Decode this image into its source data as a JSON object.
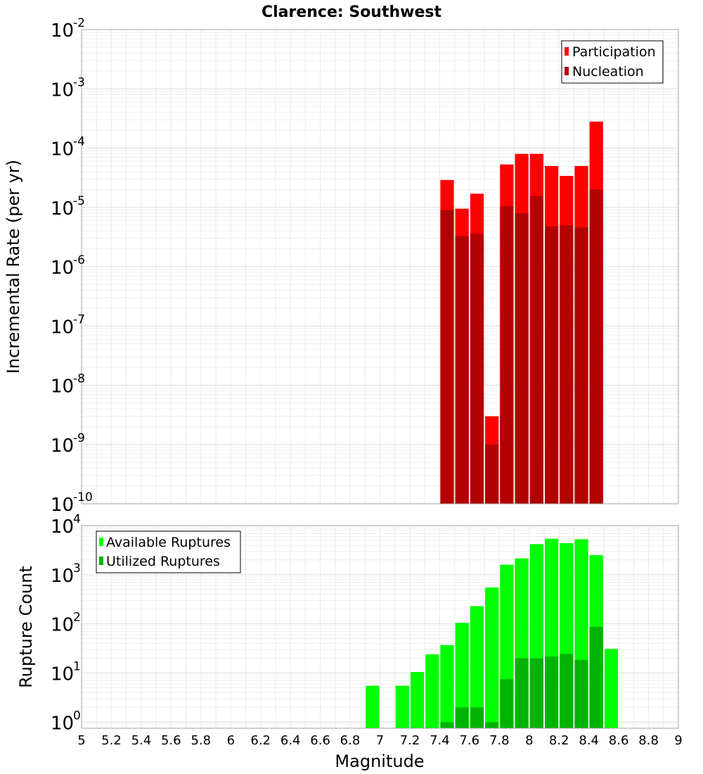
{
  "chart_data": [
    {
      "type": "bar",
      "title": "Clarence: Southwest",
      "xlabel": "Magnitude",
      "ylabel": "Incremental Rate (per yr)",
      "yscale": "log",
      "ylim": [
        1e-10,
        0.01
      ],
      "xlim": [
        5,
        9
      ],
      "grid": true,
      "legend_position": "top-right",
      "y_ticks": [
        {
          "base": "10",
          "exp": "-10",
          "value": 1e-10
        },
        {
          "base": "10",
          "exp": "-9",
          "value": 1e-09
        },
        {
          "base": "10",
          "exp": "-8",
          "value": 1e-08
        },
        {
          "base": "10",
          "exp": "-7",
          "value": 1e-07
        },
        {
          "base": "10",
          "exp": "-6",
          "value": 1e-06
        },
        {
          "base": "10",
          "exp": "-5",
          "value": 1e-05
        },
        {
          "base": "10",
          "exp": "-4",
          "value": 0.0001
        },
        {
          "base": "10",
          "exp": "-3",
          "value": 0.001
        },
        {
          "base": "10",
          "exp": "-2",
          "value": 0.01
        }
      ],
      "x": [
        7.45,
        7.55,
        7.65,
        7.75,
        7.85,
        7.95,
        8.05,
        8.15,
        8.25,
        8.35,
        8.45
      ],
      "series": [
        {
          "name": "Participation",
          "color": "#ff0000",
          "values": [
            2.9e-05,
            9.5e-06,
            1.7e-05,
            3e-09,
            5.3e-05,
            8e-05,
            8e-05,
            5e-05,
            3.4e-05,
            5e-05,
            0.00028
          ]
        },
        {
          "name": "Nucleation",
          "color": "#b30000",
          "values": [
            9e-06,
            3.3e-06,
            3.6e-06,
            1e-09,
            1.05e-05,
            8e-06,
            1.55e-05,
            4.8e-06,
            5e-06,
            4.6e-06,
            2e-05
          ]
        }
      ]
    },
    {
      "type": "bar",
      "xlabel": "Magnitude",
      "ylabel": "Rupture Count",
      "yscale": "log",
      "ylim": [
        0.75,
        10000
      ],
      "xlim": [
        5,
        9
      ],
      "grid": true,
      "legend_position": "top-left",
      "x_ticks": [
        "5",
        "5.2",
        "5.4",
        "5.6",
        "5.8",
        "6",
        "6.2",
        "6.4",
        "6.6",
        "6.8",
        "7",
        "7.2",
        "7.4",
        "7.6",
        "7.8",
        "8",
        "8.2",
        "8.4",
        "8.6",
        "8.8",
        "9"
      ],
      "y_ticks": [
        {
          "base": "10",
          "exp": "0",
          "value": 1
        },
        {
          "base": "10",
          "exp": "1",
          "value": 10
        },
        {
          "base": "10",
          "exp": "2",
          "value": 100
        },
        {
          "base": "10",
          "exp": "3",
          "value": 1000
        },
        {
          "base": "10",
          "exp": "4",
          "value": 10000
        }
      ],
      "x": [
        6.95,
        7.15,
        7.25,
        7.35,
        7.45,
        7.55,
        7.65,
        7.75,
        7.85,
        7.95,
        8.05,
        8.15,
        8.25,
        8.35,
        8.45,
        8.55
      ],
      "series": [
        {
          "name": "Available Ruptures",
          "color": "#00ff00",
          "values": [
            5.5,
            5.5,
            10.5,
            24,
            37,
            105,
            230,
            550,
            1600,
            2150,
            4200,
            5400,
            4400,
            5300,
            2500,
            31
          ]
        },
        {
          "name": "Utilized Ruptures",
          "color": "#00b300",
          "values": [
            null,
            null,
            null,
            null,
            1,
            2,
            2,
            1,
            7.5,
            20,
            20,
            21.5,
            24.5,
            18.5,
            87,
            null
          ]
        }
      ]
    }
  ]
}
